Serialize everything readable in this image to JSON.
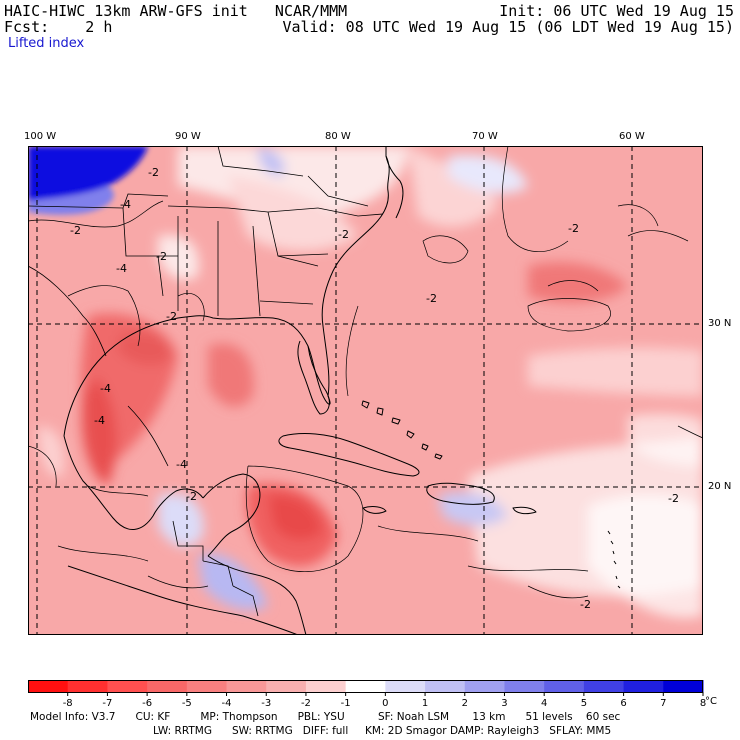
{
  "header": {
    "title": "HAIC-HIWC 13km ARW-GFS init   NCAR/MMM",
    "fcst": "Fcst:    2 h",
    "field": "Lifted index",
    "init": "Init: 06 UTC Wed 19 Aug 15",
    "valid": "Valid: 08 UTC Wed 19 Aug 15 (06 LDT Wed 19 Aug 15)"
  },
  "longitude_labels": [
    "100 W",
    "90 W",
    "80 W",
    "70 W",
    "60 W"
  ],
  "latitude_labels": [
    "30 N",
    "20 N"
  ],
  "contour_labels": [
    "-2",
    "-2",
    "-4",
    "-2",
    "-4",
    "-2",
    "-2",
    "-2",
    "-2",
    "-2",
    "-4",
    "-4",
    "-4",
    "-2",
    "-2"
  ],
  "colorbar": {
    "ticks": [
      "-8",
      "-7",
      "-6",
      "-5",
      "-4",
      "-3",
      "-2",
      "-1",
      "0",
      "1",
      "2",
      "3",
      "4",
      "5",
      "6",
      "7",
      "8"
    ],
    "unit": "°C",
    "colors": [
      "#ff1010",
      "#ff3030",
      "#ff5050",
      "#f86868",
      "#f88080",
      "#f89898",
      "#f8b0b0",
      "#fcd0d0",
      "#ffffff",
      "#dcdcf8",
      "#c0c0f4",
      "#a0a0f0",
      "#8080ec",
      "#6060e8",
      "#4040e4",
      "#2020e0",
      "#0000d8"
    ]
  },
  "model_info": {
    "line1": "Model Info: V3.7      CU: KF         MP: Thompson      PBL: YSU          SF: Noah LSM       13 km      51 levels    60 sec",
    "line2": "LW: RRTMG      SW: RRTMG   DIFF: full     KM: 2D Smagor DAMP: Rayleigh3   SFLAY: MM5"
  }
}
